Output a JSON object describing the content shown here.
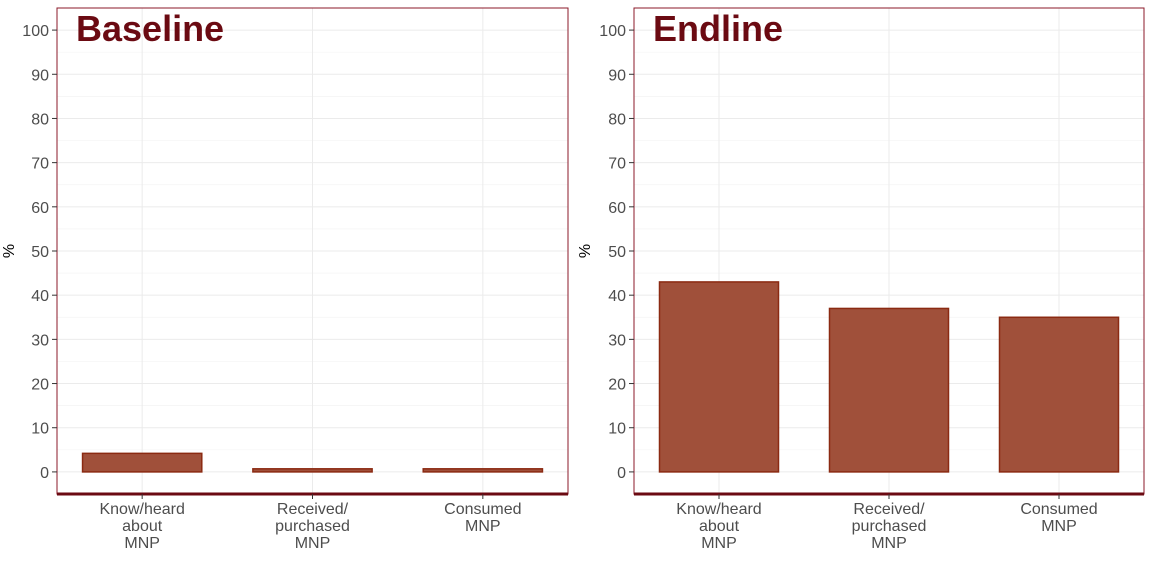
{
  "chart_data": [
    {
      "type": "bar",
      "title": "Baseline",
      "xlabel": "",
      "ylabel": "%",
      "ylim": [
        -5,
        105
      ],
      "yticks": [
        0,
        10,
        20,
        30,
        40,
        50,
        60,
        70,
        80,
        90,
        100
      ],
      "grid": true,
      "categories": [
        [
          "Know/heard",
          "about",
          "MNP"
        ],
        [
          "Received/",
          "purchased",
          "MNP"
        ],
        [
          "Consumed",
          "MNP"
        ]
      ],
      "values": [
        4.2,
        0.7,
        0.7
      ]
    },
    {
      "type": "bar",
      "title": "Endline",
      "xlabel": "",
      "ylabel": "%",
      "ylim": [
        -5,
        105
      ],
      "yticks": [
        0,
        10,
        20,
        30,
        40,
        50,
        60,
        70,
        80,
        90,
        100
      ],
      "grid": true,
      "categories": [
        [
          "Know/heard",
          "about",
          "MNP"
        ],
        [
          "Received/",
          "purchased",
          "MNP"
        ],
        [
          "Consumed",
          "MNP"
        ]
      ],
      "values": [
        43,
        37,
        35
      ]
    }
  ],
  "colors": {
    "bar_fill": "#a0503a",
    "bar_stroke": "#8b2a12",
    "title": "#6b0a12",
    "panel_border": "#8b1a2a",
    "grid": "#ebebeb",
    "text": "#4d4d4d"
  }
}
